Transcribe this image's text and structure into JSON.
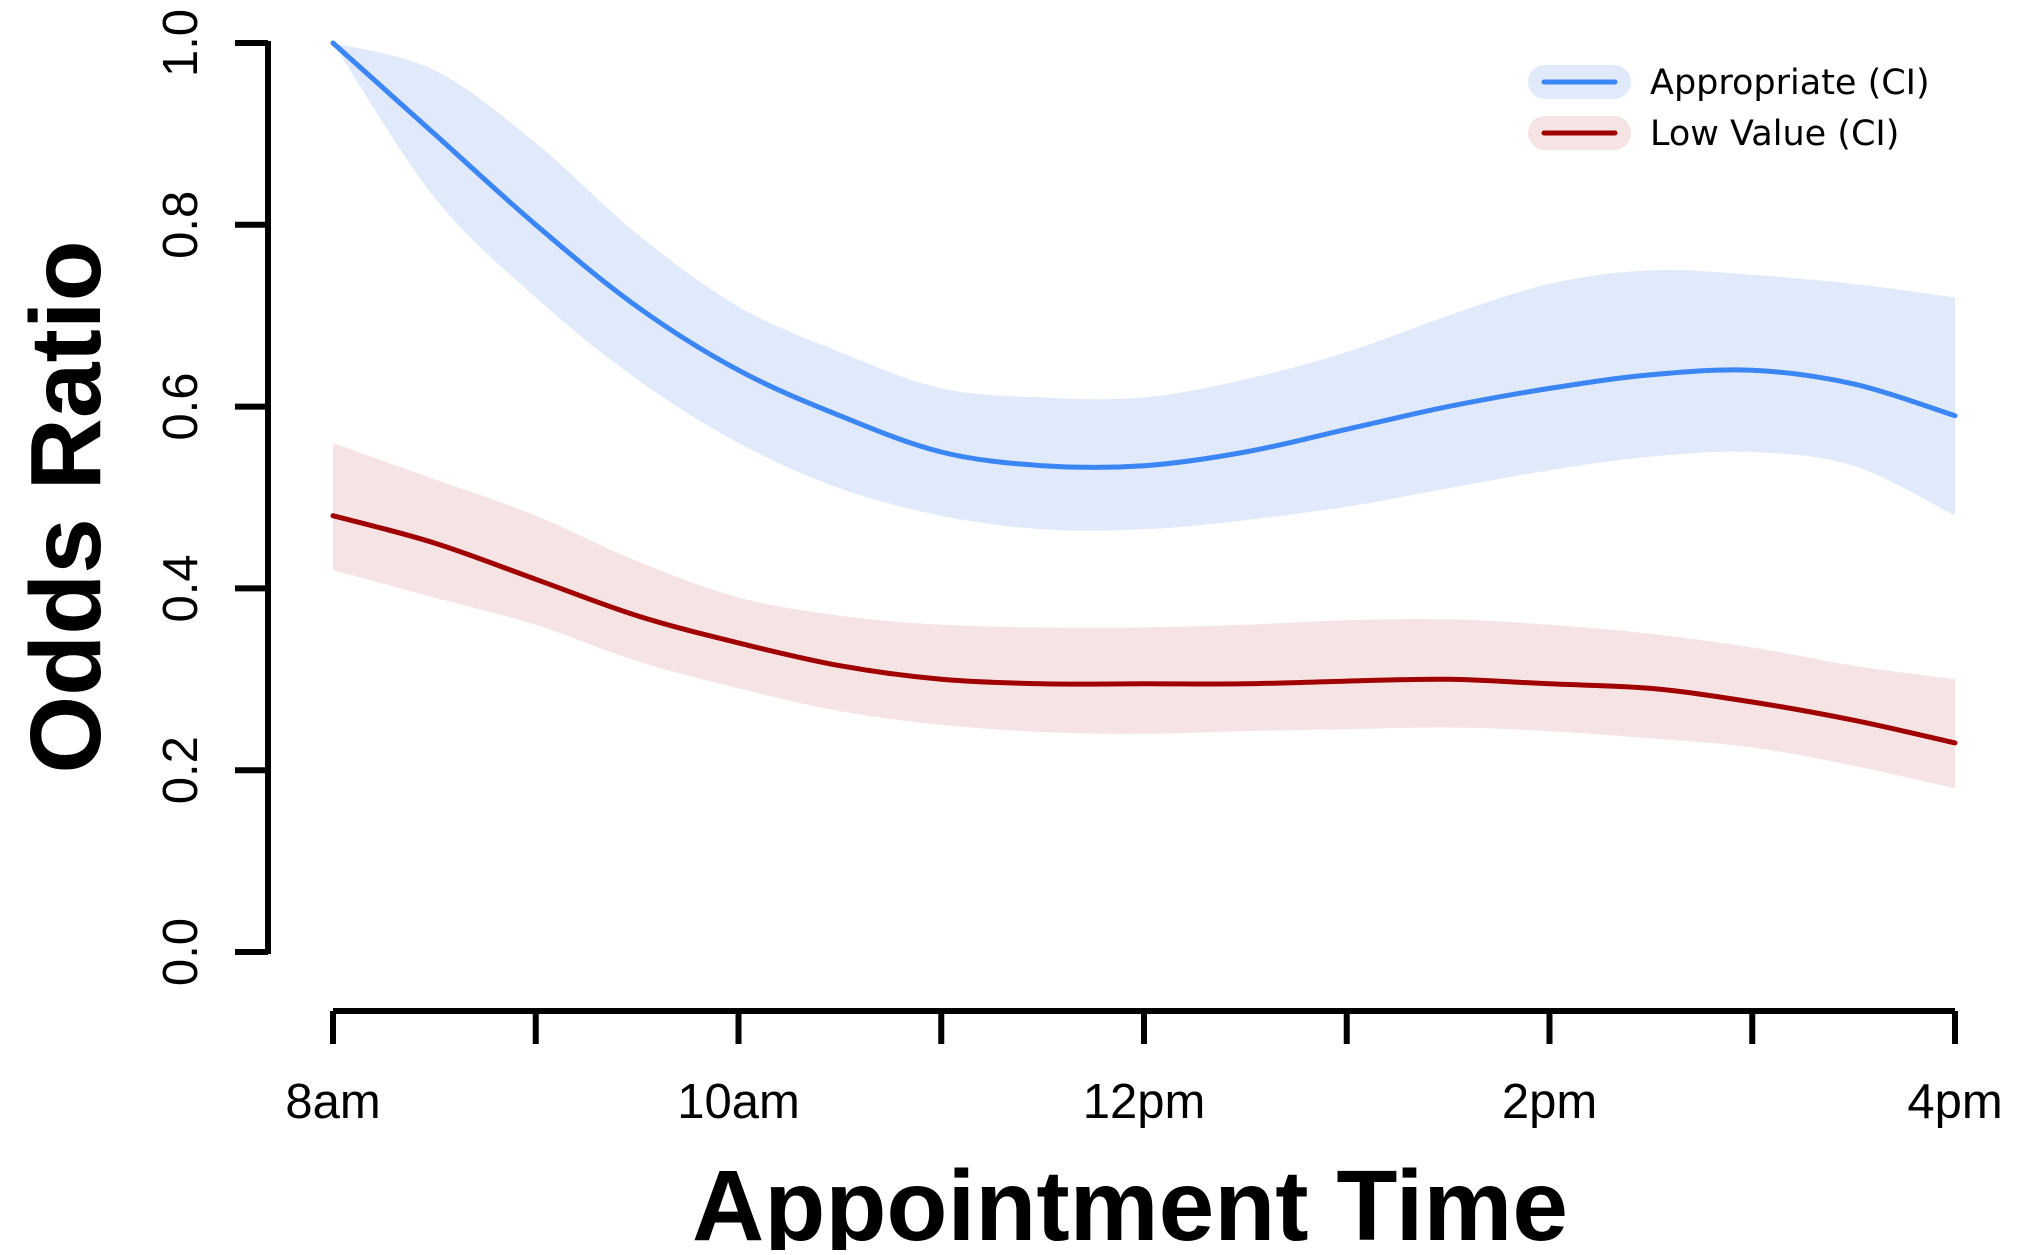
{
  "chart_data": {
    "type": "line",
    "xlabel": "Appointment Time",
    "ylabel": "Odds Ratio",
    "xlim": [
      8,
      16
    ],
    "ylim": [
      0,
      1
    ],
    "x_ticks": [
      {
        "value": 8,
        "label": "8am"
      },
      {
        "value": 9,
        "label": ""
      },
      {
        "value": 10,
        "label": "10am"
      },
      {
        "value": 11,
        "label": ""
      },
      {
        "value": 12,
        "label": "12pm"
      },
      {
        "value": 13,
        "label": ""
      },
      {
        "value": 14,
        "label": "2pm"
      },
      {
        "value": 15,
        "label": ""
      },
      {
        "value": 16,
        "label": "4pm"
      }
    ],
    "y_ticks": [
      {
        "value": 0.0,
        "label": "0.0"
      },
      {
        "value": 0.2,
        "label": "0.2"
      },
      {
        "value": 0.4,
        "label": "0.4"
      },
      {
        "value": 0.6,
        "label": "0.6"
      },
      {
        "value": 0.8,
        "label": "0.8"
      },
      {
        "value": 1.0,
        "label": "1.0"
      }
    ],
    "grid": false,
    "legend_position": "top-right",
    "x": [
      8,
      8.5,
      9,
      9.5,
      10,
      10.5,
      11,
      11.5,
      12,
      12.5,
      13,
      13.5,
      14,
      14.5,
      15,
      15.5,
      16
    ],
    "series": [
      {
        "name": "Appropriate (CI)",
        "color": "#3b85f5",
        "band_color": "#e0eafb",
        "values": [
          1.0,
          0.9,
          0.8,
          0.71,
          0.64,
          0.59,
          0.55,
          0.535,
          0.535,
          0.55,
          0.575,
          0.6,
          0.62,
          0.635,
          0.64,
          0.625,
          0.59
        ],
        "lower": [
          1.0,
          0.83,
          0.72,
          0.63,
          0.56,
          0.51,
          0.48,
          0.465,
          0.465,
          0.475,
          0.49,
          0.51,
          0.53,
          0.545,
          0.55,
          0.535,
          0.48
        ],
        "upper": [
          1.0,
          0.97,
          0.89,
          0.79,
          0.71,
          0.66,
          0.62,
          0.61,
          0.61,
          0.63,
          0.66,
          0.7,
          0.735,
          0.75,
          0.745,
          0.735,
          0.72
        ]
      },
      {
        "name": "Low Value (CI)",
        "color": "#a00000",
        "band_color": "#f5e4e3",
        "values": [
          0.48,
          0.45,
          0.41,
          0.37,
          0.34,
          0.315,
          0.3,
          0.295,
          0.295,
          0.295,
          0.298,
          0.3,
          0.295,
          0.29,
          0.275,
          0.255,
          0.23
        ],
        "lower": [
          0.42,
          0.39,
          0.36,
          0.32,
          0.29,
          0.265,
          0.25,
          0.242,
          0.24,
          0.243,
          0.245,
          0.247,
          0.243,
          0.235,
          0.225,
          0.205,
          0.18
        ],
        "upper": [
          0.56,
          0.52,
          0.48,
          0.43,
          0.39,
          0.37,
          0.36,
          0.357,
          0.357,
          0.36,
          0.365,
          0.366,
          0.36,
          0.35,
          0.335,
          0.315,
          0.3
        ]
      }
    ]
  }
}
